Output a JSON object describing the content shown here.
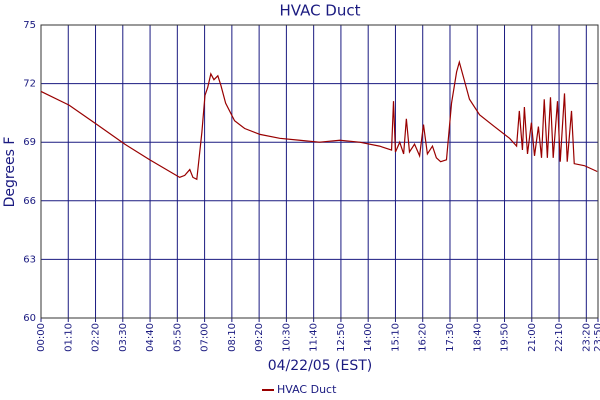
{
  "chart_data": {
    "type": "line",
    "title": "HVAC Duct",
    "xlabel": "04/22/05 (EST)",
    "ylabel": "Degrees F",
    "xlim": [
      0,
      1430
    ],
    "ylim": [
      60,
      75
    ],
    "yticks": [
      60,
      63,
      66,
      69,
      72,
      75
    ],
    "xticks": [
      {
        "value": 0,
        "label": "00:00"
      },
      {
        "value": 70,
        "label": "01:10"
      },
      {
        "value": 140,
        "label": "02:20"
      },
      {
        "value": 210,
        "label": "03:30"
      },
      {
        "value": 280,
        "label": "04:40"
      },
      {
        "value": 350,
        "label": "05:50"
      },
      {
        "value": 420,
        "label": "07:00"
      },
      {
        "value": 490,
        "label": "08:10"
      },
      {
        "value": 560,
        "label": "09:20"
      },
      {
        "value": 630,
        "label": "10:30"
      },
      {
        "value": 700,
        "label": "11:40"
      },
      {
        "value": 770,
        "label": "12:50"
      },
      {
        "value": 840,
        "label": "14:00"
      },
      {
        "value": 910,
        "label": "15:10"
      },
      {
        "value": 980,
        "label": "16:20"
      },
      {
        "value": 1050,
        "label": "17:30"
      },
      {
        "value": 1120,
        "label": "18:40"
      },
      {
        "value": 1190,
        "label": "19:50"
      },
      {
        "value": 1260,
        "label": "21:00"
      },
      {
        "value": 1330,
        "label": "22:10"
      },
      {
        "value": 1400,
        "label": "23:20"
      },
      {
        "value": 1430,
        "label": "23:50"
      }
    ],
    "grid": true,
    "legend": "bottom",
    "x": [
      0,
      72,
      144,
      215,
      279,
      356,
      369,
      382,
      390,
      400,
      413,
      421,
      428,
      436,
      444,
      454,
      462,
      474,
      497,
      523,
      562,
      613,
      664,
      715,
      767,
      818,
      869,
      900,
      905,
      910,
      921,
      931,
      938,
      946,
      959,
      972,
      982,
      992,
      1005,
      1015,
      1026,
      1041,
      1054,
      1067,
      1074,
      1085,
      1100,
      1126,
      1164,
      1203,
      1221,
      1228,
      1236,
      1241,
      1249,
      1259,
      1267,
      1277,
      1285,
      1292,
      1300,
      1308,
      1315,
      1326,
      1333,
      1344,
      1351,
      1362,
      1369,
      1395,
      1428
    ],
    "series": [
      {
        "name": "HVAC Duct",
        "color": "#990000",
        "values": [
          71.6,
          70.9,
          69.9,
          68.9,
          68.1,
          67.2,
          67.3,
          67.6,
          67.2,
          67.1,
          69.5,
          71.4,
          71.8,
          72.5,
          72.2,
          72.4,
          71.9,
          71.0,
          70.1,
          69.7,
          69.4,
          69.2,
          69.1,
          69.0,
          69.1,
          69.0,
          68.8,
          68.6,
          71.1,
          68.5,
          69.0,
          68.4,
          70.2,
          68.5,
          68.9,
          68.3,
          69.9,
          68.4,
          68.8,
          68.2,
          68.0,
          68.1,
          71.0,
          72.6,
          73.1,
          72.3,
          71.2,
          70.4,
          69.8,
          69.2,
          68.8,
          70.6,
          68.6,
          70.8,
          68.4,
          70.0,
          68.3,
          69.8,
          68.2,
          71.2,
          68.2,
          71.3,
          68.2,
          71.1,
          68.0,
          71.5,
          68.0,
          70.6,
          67.9,
          67.8,
          67.5
        ]
      }
    ]
  }
}
